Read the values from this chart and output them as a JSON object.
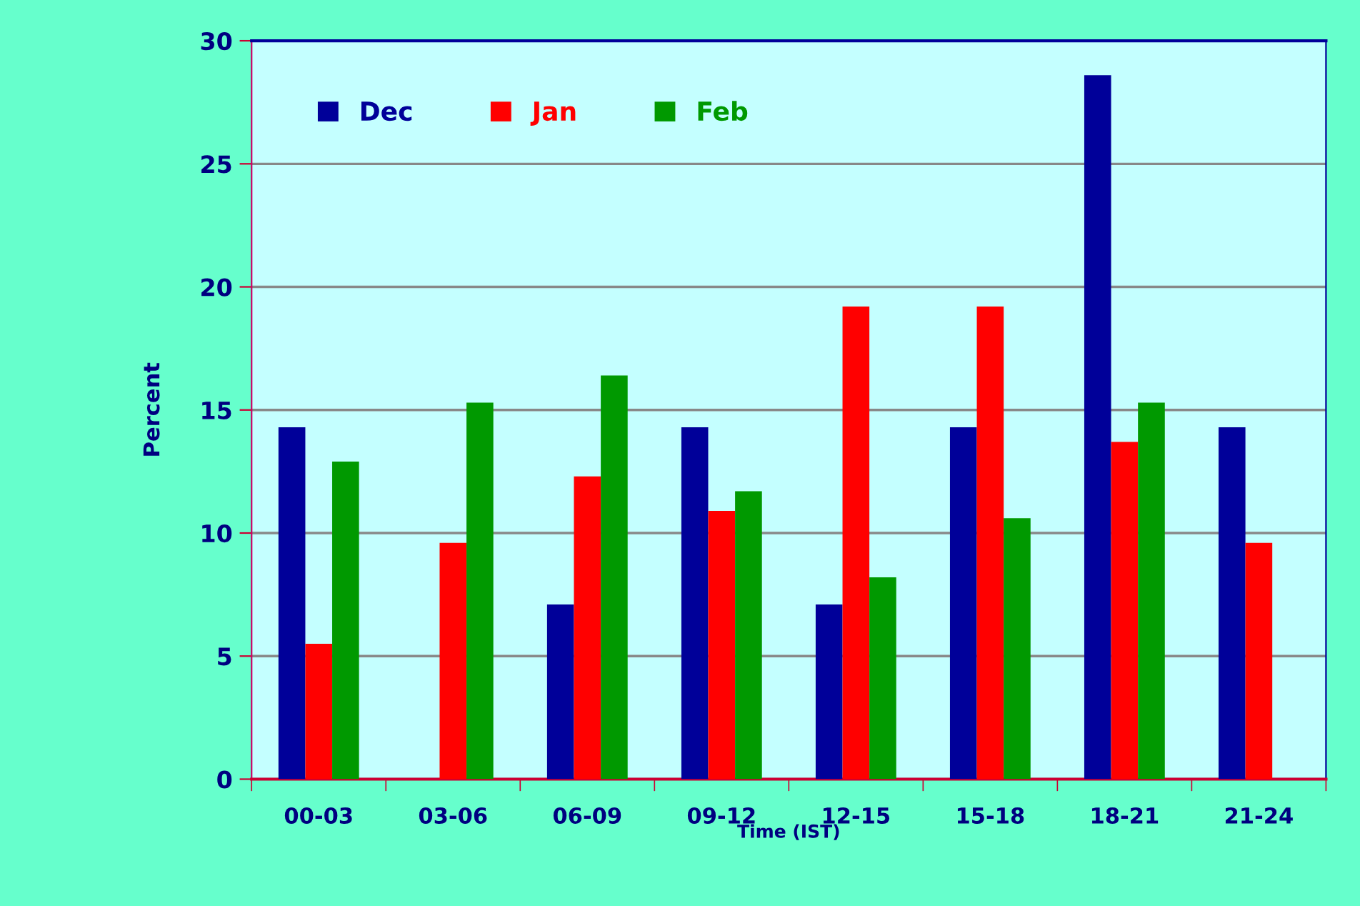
{
  "chart_data": {
    "type": "bar",
    "xlabel": "Time (IST)",
    "ylabel": "Percent",
    "categories": [
      "00-03",
      "03-06",
      "06-09",
      "09-12",
      "12-15",
      "15-18",
      "18-21",
      "21-24"
    ],
    "series": [
      {
        "name": "Dec",
        "color": "#000099",
        "values": [
          14.3,
          0,
          7.1,
          14.3,
          7.1,
          14.3,
          28.6,
          14.3
        ]
      },
      {
        "name": "Jan",
        "color": "#ff0000",
        "values": [
          5.5,
          9.6,
          12.3,
          10.9,
          19.2,
          19.2,
          13.7,
          9.6
        ]
      },
      {
        "name": "Feb",
        "color": "#009900",
        "values": [
          12.9,
          15.3,
          16.4,
          11.7,
          8.2,
          10.6,
          15.3,
          null
        ]
      }
    ],
    "ylim": [
      0,
      30
    ],
    "yticks": [
      0,
      5,
      10,
      15,
      20,
      25,
      30
    ],
    "grid": "y",
    "legend": "top left"
  }
}
